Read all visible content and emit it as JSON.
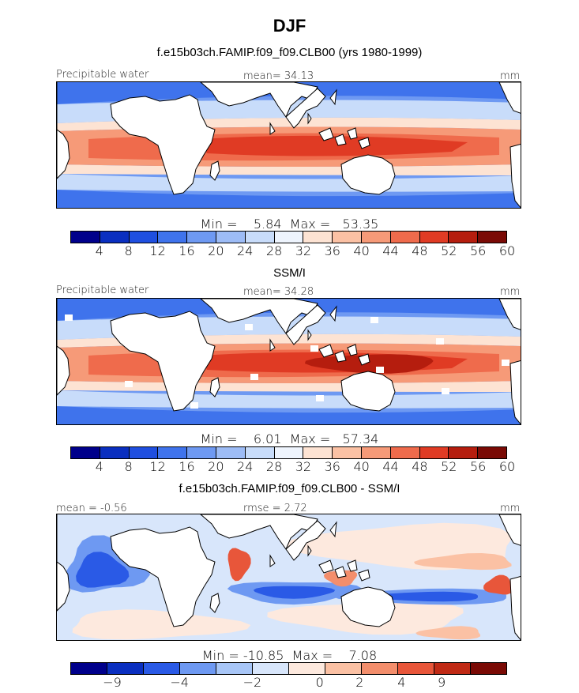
{
  "title": "DJF",
  "panels": [
    {
      "title": "f.e15b03ch.FAMIP.f09_f09.CLB00 (yrs 1980-1999)",
      "left_label": "Precipitable water",
      "center_label": "mean=  34.13",
      "units": "mm",
      "minmax": "Min =    5.84  Max =   53.35",
      "colorbar_ticks": [
        "4",
        "8",
        "12",
        "16",
        "20",
        "24",
        "28",
        "32",
        "36",
        "40",
        "44",
        "48",
        "52",
        "56",
        "60"
      ]
    },
    {
      "title": "SSM/I",
      "left_label": "Precipitable water",
      "center_label": "mean=  34.28",
      "units": "mm",
      "minmax": "Min =    6.01  Max =   57.34",
      "colorbar_ticks": [
        "4",
        "8",
        "12",
        "16",
        "20",
        "24",
        "28",
        "32",
        "36",
        "40",
        "44",
        "48",
        "52",
        "56",
        "60"
      ]
    },
    {
      "title": "f.e15b03ch.FAMIP.f09_f09.CLB00 - SSM/I",
      "left_label": "mean =  -0.56",
      "center_label": "rmse =   2.72",
      "units": "mm",
      "minmax": "Min = -10.85  Max =    7.08",
      "colorbar_ticks": [
        "−9",
        "−4",
        "−2",
        "0",
        "2",
        "4",
        "9"
      ]
    }
  ],
  "colors": {
    "abs_scale": [
      "#00008b",
      "#0a2fc0",
      "#1f4fe0",
      "#3f73ec",
      "#6e99f2",
      "#9dbcf6",
      "#c8dcfa",
      "#eef4fd",
      "#fde3d3",
      "#fbc1a4",
      "#f69a78",
      "#ef6b4c",
      "#e03b24",
      "#b51d0e",
      "#7a0a05"
    ],
    "diff_scale": [
      "#00008b",
      "#0a2fc0",
      "#2a5ae6",
      "#6e99f2",
      "#a8c6f7",
      "#d8e6fb",
      "#fde9de",
      "#fbc1a4",
      "#f38e6c",
      "#e8563a",
      "#c02a15",
      "#7a0a05"
    ],
    "land": "#ffffff"
  }
}
